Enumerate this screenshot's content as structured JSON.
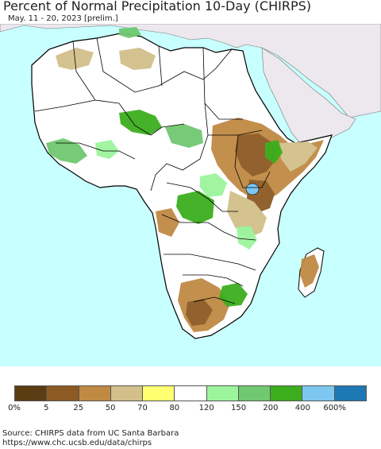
{
  "title": "Percent of Normal Precipitation 10-Day (CHIRPS)",
  "subtitle": "May. 11 - 20, 2023 [prelim.]",
  "legend": {
    "colors": [
      "#5a3d12",
      "#8c5a22",
      "#c08a44",
      "#d2bf8a",
      "#ffff70",
      "#ffffff",
      "#9cf59c",
      "#70c870",
      "#3cae1e",
      "#7dc8f0",
      "#1e78b4"
    ],
    "labels": [
      "0%",
      "5",
      "25",
      "50",
      "70",
      "80",
      "120",
      "150",
      "200",
      "400",
      "600%"
    ]
  },
  "source_line1": "Source: CHIRPS data from UC Santa Barbara",
  "source_line2": "https://www.chc.ucsb.edu/data/chirps",
  "colors": {
    "ocean": "#c8ffff",
    "land": "#ffffff",
    "other_land": "#ece8ee",
    "border": "#000000"
  }
}
